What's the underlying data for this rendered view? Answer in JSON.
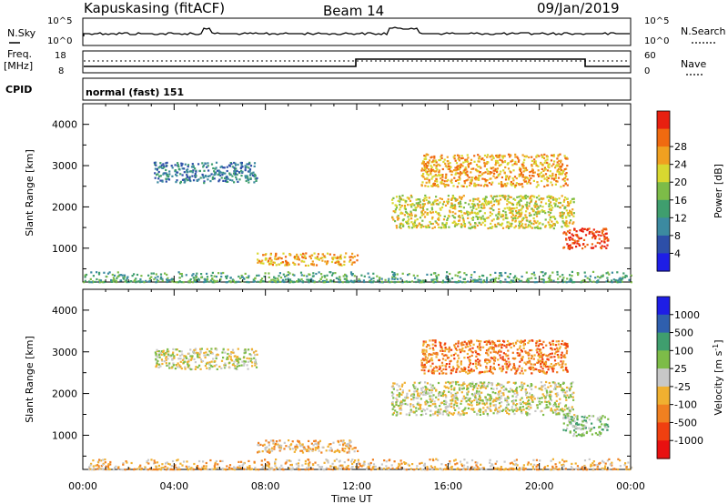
{
  "header": {
    "station": "Kapuskasing (fitACF)",
    "beam": "Beam 14",
    "date": "09/Jan/2019"
  },
  "side_labels": {
    "nsky": "N.Sky",
    "freq": "Freq.",
    "mhz": "[MHz]",
    "cpid": "CPID",
    "nsearch": "N.Search",
    "nave": "Nave"
  },
  "mini_ticks": {
    "nsky_top": "10^5",
    "nsky_bot": "10^0",
    "freq_top": "18",
    "freq_bot": "8",
    "nave_top": "60",
    "nave_bot": "0"
  },
  "cpid_text": "normal (fast) 151",
  "colors": {
    "power_scale": [
      "#1e1ee6",
      "#2d4fa8",
      "#3c8aa0",
      "#3f9e6e",
      "#7dbc48",
      "#d8d830",
      "#f0a020",
      "#f06a10",
      "#e82010"
    ],
    "velocity_scale": [
      "#1e1ee6",
      "#2f5fae",
      "#3f9e6e",
      "#7dbc48",
      "#c8c8c8",
      "#f0b030",
      "#f08020",
      "#f04010",
      "#e81010"
    ]
  },
  "chart_data": [
    {
      "type": "heatmap",
      "ylabel": "Slant Range [km]",
      "xlim": [
        "00:00",
        "24:00"
      ],
      "ylim": [
        180,
        4500
      ],
      "yticks": [
        1000,
        2000,
        3000,
        4000
      ],
      "colorbar": {
        "label": "Power [dB]",
        "ticks": [
          "4",
          "8",
          "12",
          "16",
          "20",
          "24",
          "28"
        ]
      },
      "regions": [
        {
          "t0": 3.1,
          "t1": 7.6,
          "r0": 2600,
          "r1": 3100,
          "level": 2
        },
        {
          "t0": 7.6,
          "t1": 12.0,
          "r0": 600,
          "r1": 900,
          "level": 6
        },
        {
          "t0": 13.5,
          "t1": 21.5,
          "r0": 1500,
          "r1": 2300,
          "level": 5
        },
        {
          "t0": 14.8,
          "t1": 21.2,
          "r0": 2500,
          "r1": 3300,
          "level": 6
        },
        {
          "t0": 21.0,
          "t1": 23.0,
          "r0": 1000,
          "r1": 1500,
          "level": 8
        },
        {
          "t0": 0.0,
          "t1": 24.0,
          "r0": 200,
          "r1": 450,
          "level": 3
        }
      ]
    },
    {
      "type": "heatmap",
      "ylabel": "Slant Range [km]",
      "xlabel": "Time UT",
      "xlim": [
        "00:00",
        "24:00"
      ],
      "xticks": [
        "00:00",
        "04:00",
        "08:00",
        "12:00",
        "16:00",
        "20:00",
        "00:00"
      ],
      "ylim": [
        180,
        4500
      ],
      "yticks": [
        1000,
        2000,
        3000,
        4000
      ],
      "colorbar": {
        "label": "Velocity [m s",
        "label_superscript": "-1",
        "label_close": "]",
        "ticks": [
          "1000",
          "500",
          "100",
          "25",
          "-25",
          "-100",
          "-500",
          "-1000"
        ]
      },
      "regions": [
        {
          "t0": 3.1,
          "t1": 7.6,
          "r0": 2600,
          "r1": 3100,
          "level": 4
        },
        {
          "t0": 7.6,
          "t1": 12.0,
          "r0": 600,
          "r1": 900,
          "level": 5
        },
        {
          "t0": 13.5,
          "t1": 21.5,
          "r0": 1500,
          "r1": 2300,
          "level": 4
        },
        {
          "t0": 14.8,
          "t1": 21.2,
          "r0": 2500,
          "r1": 3300,
          "level": 6
        },
        {
          "t0": 21.0,
          "t1": 23.0,
          "r0": 1000,
          "r1": 1500,
          "level": 3
        },
        {
          "t0": 0.0,
          "t1": 24.0,
          "r0": 200,
          "r1": 450,
          "level": 5
        }
      ]
    }
  ]
}
